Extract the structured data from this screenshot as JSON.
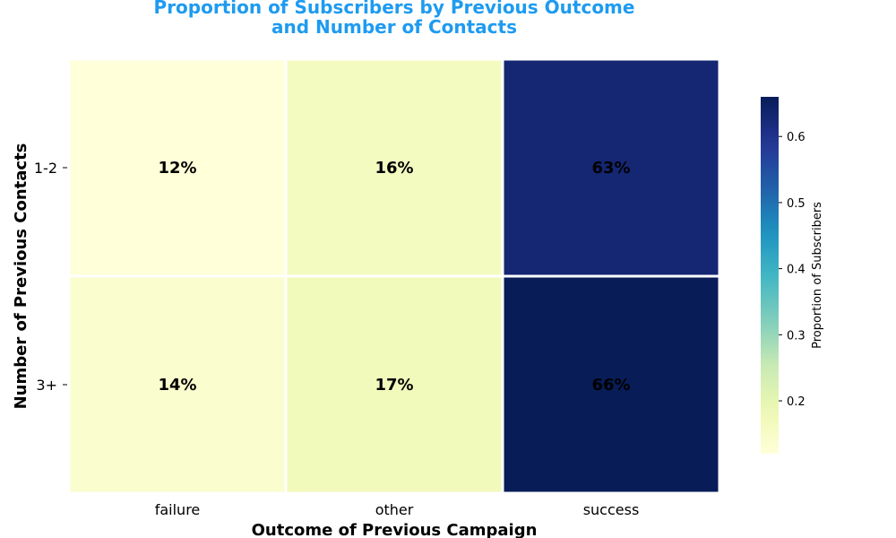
{
  "chart_data": {
    "type": "heatmap",
    "title_line1": "Proportion of Subscribers by Previous Outcome",
    "title_line2": "and Number of Contacts",
    "title_color": "#1e9bf0",
    "xlabel": "Outcome of Previous Campaign",
    "ylabel": "Number of Previous Contacts",
    "x_categories": [
      "failure",
      "other",
      "success"
    ],
    "y_categories": [
      "1-2",
      "3+"
    ],
    "values": [
      [
        0.12,
        0.16,
        0.63
      ],
      [
        0.14,
        0.17,
        0.66
      ]
    ],
    "cell_labels": [
      [
        "12%",
        "16%",
        "63%"
      ],
      [
        "14%",
        "17%",
        "66%"
      ]
    ],
    "colormap": "YlGnBu",
    "vmin": 0.12,
    "vmax": 0.66,
    "colorbar": {
      "label": "Proportion of Subscribers",
      "ticks": [
        0.2,
        0.3,
        0.4,
        0.5,
        0.6
      ],
      "tick_labels": [
        "0.2",
        "0.3",
        "0.4",
        "0.5",
        "0.6"
      ]
    }
  }
}
